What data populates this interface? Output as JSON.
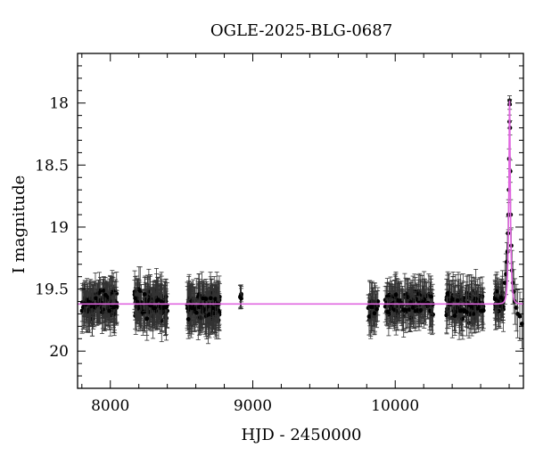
{
  "chart_data": {
    "type": "scatter",
    "title": "OGLE-2025-BLG-0687",
    "xlabel": "HJD - 2450000",
    "ylabel": "I magnitude",
    "xlim": [
      7770,
      10900
    ],
    "ylim": [
      20.3,
      17.6
    ],
    "y_inverted": true,
    "x_ticks": [
      8000,
      9000,
      10000
    ],
    "y_ticks": [
      18,
      18.5,
      19,
      19.5,
      20
    ],
    "grid": false,
    "legend": "none",
    "colors": {
      "points": "#000000",
      "model": "#e066e0"
    },
    "series": [
      {
        "kind": "points-with-errorbars",
        "seasons": [
          {
            "x_range": [
              7800,
              8050
            ],
            "mean_mag": 19.62,
            "scatter": 0.16,
            "err": 0.14,
            "count": 150
          },
          {
            "x_range": [
              8170,
              8400
            ],
            "mean_mag": 19.63,
            "scatter": 0.17,
            "err": 0.15,
            "count": 150
          },
          {
            "x_range": [
              8540,
              8770
            ],
            "mean_mag": 19.64,
            "scatter": 0.17,
            "err": 0.15,
            "count": 150
          },
          {
            "x_range": [
              8900,
              8920
            ],
            "mean_mag": 19.55,
            "scatter": 0.06,
            "err": 0.08,
            "count": 5
          },
          {
            "x_range": [
              9810,
              9880
            ],
            "mean_mag": 19.65,
            "scatter": 0.15,
            "err": 0.15,
            "count": 30
          },
          {
            "x_range": [
              9930,
              10270
            ],
            "mean_mag": 19.62,
            "scatter": 0.15,
            "err": 0.14,
            "count": 150
          },
          {
            "x_range": [
              10360,
              10620
            ],
            "mean_mag": 19.63,
            "scatter": 0.16,
            "err": 0.15,
            "count": 130
          },
          {
            "x_range": [
              10700,
              10760
            ],
            "mean_mag": 19.6,
            "scatter": 0.14,
            "err": 0.14,
            "count": 40
          }
        ],
        "event_points": [
          [
            10770,
            19.45
          ],
          [
            10778,
            19.38
          ],
          [
            10784,
            19.28
          ],
          [
            10788,
            19.2
          ],
          [
            10792,
            19.05
          ],
          [
            10795,
            18.9
          ],
          [
            10798,
            18.7
          ],
          [
            10800,
            18.45
          ],
          [
            10802,
            18.15
          ],
          [
            10803,
            17.98
          ],
          [
            10804,
            18.01
          ],
          [
            10806,
            18.2
          ],
          [
            10808,
            18.55
          ],
          [
            10811,
            18.9
          ],
          [
            10815,
            19.15
          ],
          [
            10820,
            19.35
          ],
          [
            10826,
            19.45
          ],
          [
            10832,
            19.52
          ],
          [
            10840,
            19.6
          ],
          [
            10850,
            19.65
          ],
          [
            10860,
            19.7
          ],
          [
            10875,
            19.72
          ],
          [
            10890,
            19.78
          ]
        ]
      },
      {
        "kind": "model-curve",
        "baseline_mag": 19.62,
        "peak_x": 10803,
        "peak_mag": 17.98,
        "t_E": 13
      }
    ]
  }
}
